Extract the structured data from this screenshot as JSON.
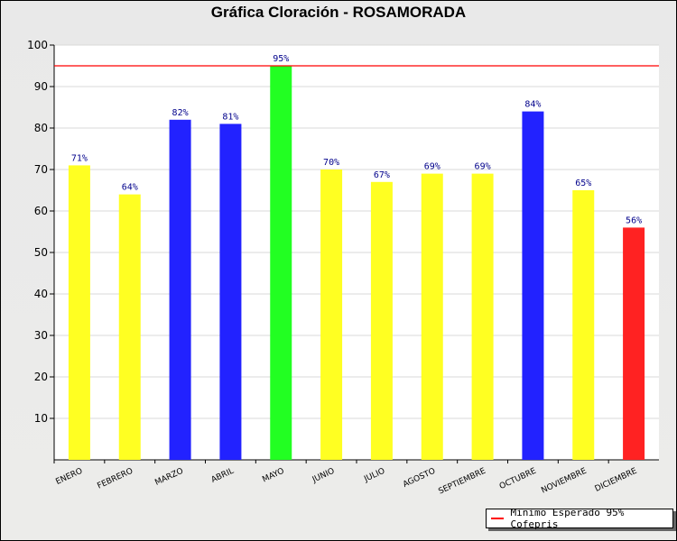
{
  "chart_data": {
    "type": "bar",
    "title": "Gráfica Cloración - ROSAMORADA",
    "categories": [
      "ENERO",
      "FEBRERO",
      "MARZO",
      "ABRIL",
      "MAYO",
      "JUNIO",
      "JULIO",
      "AGOSTO",
      "SEPTIEMBRE",
      "OCTUBRE",
      "NOVIEMBRE",
      "DICIEMBRE"
    ],
    "values": [
      71,
      64,
      82,
      81,
      95,
      70,
      67,
      69,
      69,
      84,
      65,
      56
    ],
    "labels": [
      "71%",
      "64%",
      "82%",
      "81%",
      "95%",
      "70%",
      "67%",
      "69%",
      "69%",
      "84%",
      "65%",
      "56%"
    ],
    "colors": [
      "#ffff22",
      "#ffff22",
      "#2222ff",
      "#2222ff",
      "#22ff22",
      "#ffff22",
      "#ffff22",
      "#ffff22",
      "#ffff22",
      "#2222ff",
      "#ffff22",
      "#ff2222"
    ],
    "ylim": [
      0,
      100
    ],
    "yticks": [
      10,
      20,
      30,
      40,
      50,
      60,
      70,
      80,
      90,
      100
    ],
    "reference_line": {
      "value": 95,
      "color": "#ff0000",
      "label": "Minimo Esperado 95% Cofepris"
    },
    "legend": "bottom-right",
    "grid": true
  }
}
